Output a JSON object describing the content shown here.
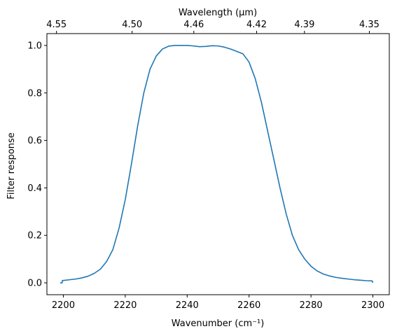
{
  "chart_data": {
    "type": "line",
    "xlabel": "Wavenumber (cm⁻¹)",
    "ylabel": "Filter response",
    "x2label": "Wavelength (μm)",
    "xlim": [
      2194.7,
      2305.3
    ],
    "ylim": [
      -0.05,
      1.05
    ],
    "x_ticks": [
      2200,
      2220,
      2240,
      2260,
      2280,
      2300
    ],
    "x_tick_labels": [
      "2200",
      "2220",
      "2240",
      "2260",
      "2280",
      "2300"
    ],
    "y_ticks": [
      0.0,
      0.2,
      0.4,
      0.6,
      0.8,
      1.0
    ],
    "y_tick_labels": [
      "0.0",
      "0.2",
      "0.4",
      "0.6",
      "0.8",
      "1.0"
    ],
    "x2_ticks": [
      4.55,
      4.5,
      4.46,
      4.42,
      4.39,
      4.35
    ],
    "x2_tick_labels": [
      "4.55",
      "4.50",
      "4.46",
      "4.42",
      "4.39",
      "4.35"
    ],
    "line_color": "#1f77b4",
    "grid": false,
    "series": [
      {
        "x": [
          2199,
          2199.6,
          2199.7,
          2200,
          2202,
          2204,
          2206,
          2208,
          2210,
          2212,
          2214,
          2216,
          2218,
          2220,
          2222,
          2224,
          2226,
          2228,
          2230,
          2232,
          2234,
          2236,
          2238,
          2240,
          2242,
          2244,
          2246,
          2248,
          2250,
          2252,
          2254,
          2256,
          2258,
          2260,
          2262,
          2264,
          2266,
          2268,
          2270,
          2272,
          2274,
          2276,
          2278,
          2280,
          2282,
          2284,
          2286,
          2288,
          2290,
          2292,
          2294,
          2296,
          2298,
          2299.8,
          2300
        ],
        "y": [
          0.0,
          0.0,
          0.01,
          0.01,
          0.013,
          0.016,
          0.021,
          0.028,
          0.04,
          0.058,
          0.09,
          0.14,
          0.23,
          0.35,
          0.5,
          0.66,
          0.8,
          0.9,
          0.955,
          0.985,
          0.997,
          1.0,
          1.0,
          1.0,
          0.998,
          0.995,
          0.996,
          0.999,
          0.998,
          0.993,
          0.985,
          0.975,
          0.965,
          0.93,
          0.86,
          0.76,
          0.64,
          0.52,
          0.4,
          0.29,
          0.2,
          0.14,
          0.1,
          0.07,
          0.05,
          0.037,
          0.029,
          0.023,
          0.019,
          0.016,
          0.013,
          0.011,
          0.009,
          0.008,
          0.0
        ]
      }
    ]
  }
}
